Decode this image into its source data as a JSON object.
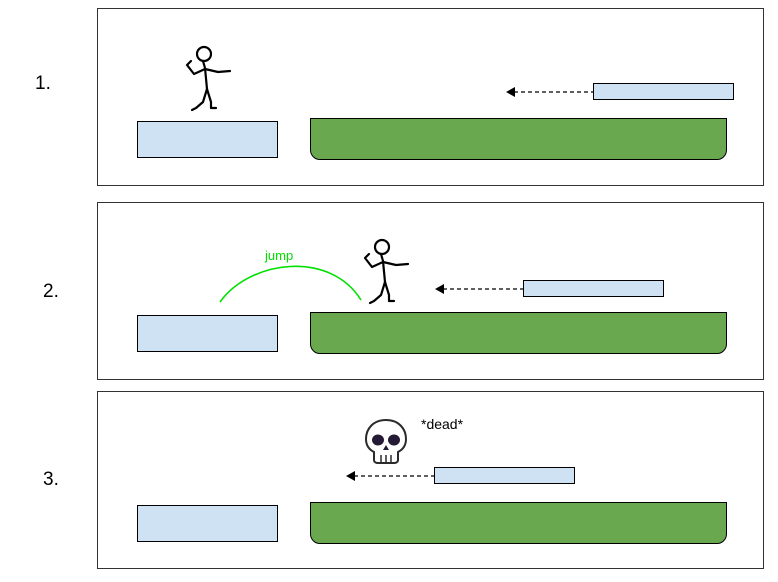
{
  "steps": [
    {
      "number": "1."
    },
    {
      "number": "2.",
      "annotation": "jump"
    },
    {
      "number": "3.",
      "annotation": "*dead*"
    }
  ],
  "colors": {
    "platform_fill": "#cfe2f3",
    "ground_fill": "#6aa84f",
    "jump_arc": "#00e000",
    "outline": "#000000"
  },
  "icons": [
    "stick-figure-icon",
    "skull-icon",
    "left-arrow-icon"
  ]
}
